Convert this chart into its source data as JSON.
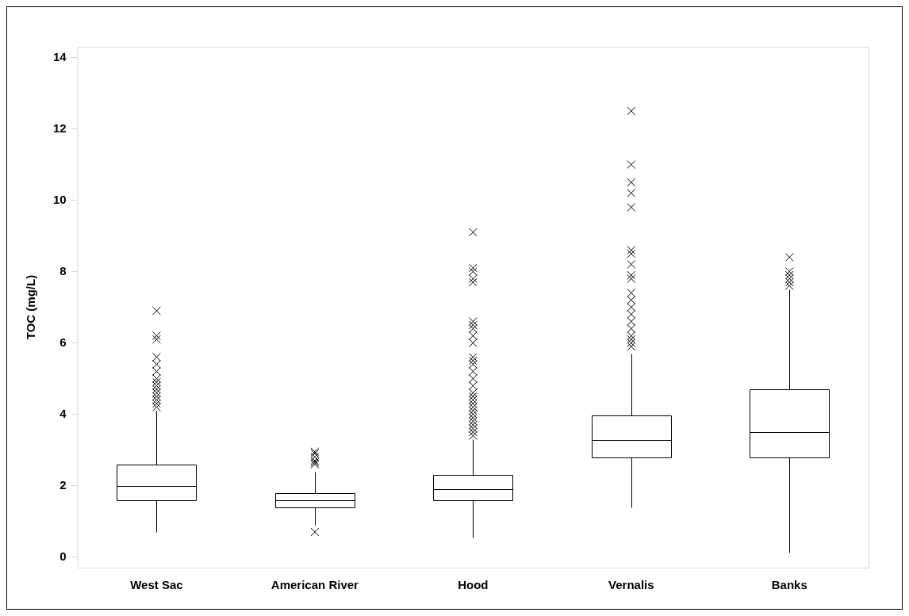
{
  "chart_data": {
    "type": "box",
    "ylabel": "TOC (mg/L)",
    "categories": [
      "West Sac",
      "American River",
      "Hood",
      "Vernalis",
      "Banks"
    ],
    "boxes": [
      {
        "low": 0.7,
        "q1": 1.6,
        "median": 2.0,
        "q3": 2.58,
        "high": 4.1,
        "outliers": [
          4.2,
          4.3,
          4.4,
          4.5,
          4.6,
          4.7,
          4.8,
          4.9,
          5.0,
          5.2,
          5.4,
          5.6,
          6.1,
          6.2,
          6.9
        ]
      },
      {
        "low": 0.9,
        "q1": 1.4,
        "median": 1.6,
        "q3": 1.8,
        "high": 2.4,
        "outliers": [
          0.7,
          2.6,
          2.65,
          2.7,
          2.8,
          2.9,
          2.95
        ]
      },
      {
        "low": 0.55,
        "q1": 1.6,
        "median": 1.9,
        "q3": 2.3,
        "high": 3.3,
        "outliers": [
          3.4,
          3.5,
          3.6,
          3.7,
          3.8,
          3.9,
          4.0,
          4.1,
          4.2,
          4.3,
          4.4,
          4.5,
          4.6,
          4.8,
          5.0,
          5.2,
          5.4,
          5.5,
          5.6,
          6.0,
          6.2,
          6.4,
          6.5,
          6.6,
          7.7,
          7.8,
          8.0,
          8.1,
          9.1
        ]
      },
      {
        "low": 1.4,
        "q1": 2.8,
        "median": 3.28,
        "q3": 3.97,
        "high": 5.7,
        "outliers": [
          5.9,
          6.0,
          6.1,
          6.2,
          6.4,
          6.6,
          6.8,
          7.0,
          7.2,
          7.4,
          7.8,
          7.9,
          8.2,
          8.5,
          8.6,
          9.8,
          10.2,
          10.5,
          11.0,
          12.5
        ]
      },
      {
        "low": 0.12,
        "q1": 2.8,
        "median": 3.5,
        "q3": 4.7,
        "high": 7.5,
        "outliers": [
          7.6,
          7.7,
          7.8,
          7.9,
          8.0,
          8.4
        ]
      }
    ],
    "ylim": [
      -0.3,
      14.3
    ],
    "yticks": [
      0,
      2,
      4,
      6,
      8,
      10,
      12,
      14
    ],
    "grid": false,
    "legend": false,
    "marker": "star",
    "color": "#000000"
  }
}
